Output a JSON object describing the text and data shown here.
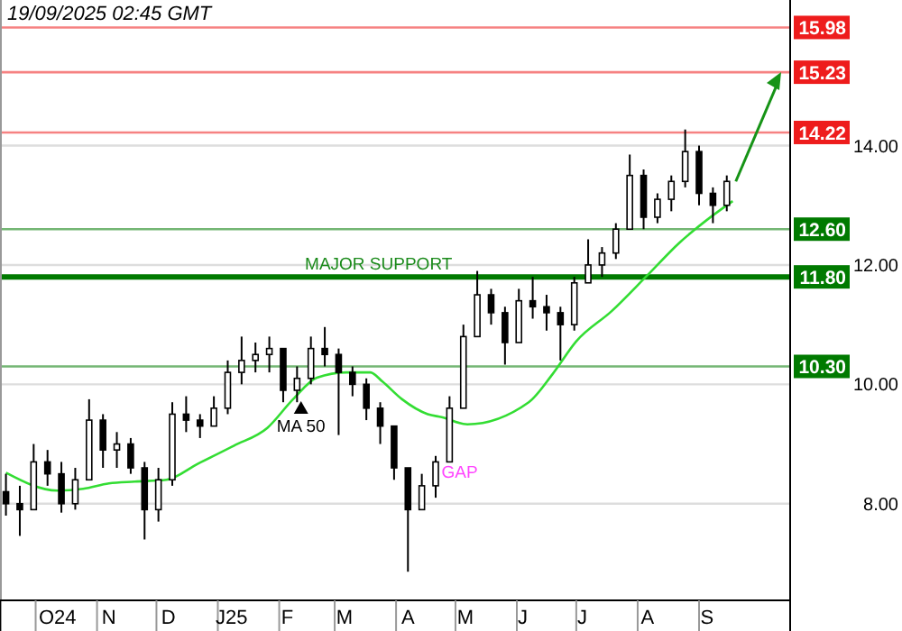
{
  "chart_data": {
    "type": "candlestick",
    "title": "19/09/2025 02:45 GMT",
    "x": [
      "2024-09-16",
      "2024-09-23",
      "2024-09-30",
      "2024-10-07",
      "2024-10-14",
      "2024-10-21",
      "2024-10-28",
      "2024-11-04",
      "2024-11-11",
      "2024-11-18",
      "2024-11-25",
      "2024-12-02",
      "2024-12-09",
      "2024-12-16",
      "2024-12-23",
      "2024-12-30",
      "2025-01-06",
      "2025-01-13",
      "2025-01-20",
      "2025-01-27",
      "2025-02-03",
      "2025-02-10",
      "2025-02-17",
      "2025-02-24",
      "2025-03-03",
      "2025-03-10",
      "2025-03-17",
      "2025-03-24",
      "2025-03-31",
      "2025-04-07",
      "2025-04-14",
      "2025-04-21",
      "2025-04-28",
      "2025-05-05",
      "2025-05-12",
      "2025-05-19",
      "2025-05-26",
      "2025-06-02",
      "2025-06-09",
      "2025-06-16",
      "2025-06-23",
      "2025-06-30",
      "2025-07-07",
      "2025-07-14",
      "2025-07-21",
      "2025-07-28",
      "2025-08-04",
      "2025-08-11",
      "2025-08-18",
      "2025-08-25",
      "2025-09-01",
      "2025-09-08",
      "2025-09-15"
    ],
    "ohlc": [
      [
        8.2,
        8.5,
        7.8,
        8.0
      ],
      [
        8.0,
        8.3,
        7.46,
        7.9
      ],
      [
        7.9,
        9.0,
        7.9,
        8.7
      ],
      [
        8.7,
        8.9,
        8.3,
        8.5
      ],
      [
        8.5,
        8.7,
        7.85,
        8.0
      ],
      [
        8.0,
        8.6,
        7.9,
        8.4
      ],
      [
        8.4,
        9.75,
        8.4,
        9.4
      ],
      [
        9.4,
        9.5,
        8.6,
        8.9
      ],
      [
        8.9,
        9.2,
        8.6,
        9.0
      ],
      [
        9.0,
        9.1,
        8.5,
        8.6
      ],
      [
        8.6,
        8.7,
        7.4,
        7.9
      ],
      [
        7.9,
        8.6,
        7.7,
        8.4
      ],
      [
        8.4,
        9.7,
        8.3,
        9.5
      ],
      [
        9.5,
        9.8,
        9.2,
        9.4
      ],
      [
        9.4,
        9.5,
        9.1,
        9.3
      ],
      [
        9.3,
        9.8,
        9.3,
        9.6
      ],
      [
        9.6,
        10.4,
        9.5,
        10.2
      ],
      [
        10.2,
        10.8,
        10.0,
        10.4
      ],
      [
        10.4,
        10.7,
        10.2,
        10.5
      ],
      [
        10.5,
        10.8,
        10.2,
        10.6
      ],
      [
        10.6,
        10.6,
        9.7,
        9.9
      ],
      [
        9.9,
        10.3,
        9.7,
        10.1
      ],
      [
        10.1,
        10.8,
        10.0,
        10.6
      ],
      [
        10.6,
        10.96,
        10.3,
        10.5
      ],
      [
        10.5,
        10.6,
        9.15,
        10.2
      ],
      [
        10.2,
        10.3,
        9.8,
        10.0
      ],
      [
        10.0,
        10.1,
        9.4,
        9.6
      ],
      [
        9.6,
        9.7,
        9.0,
        9.3
      ],
      [
        9.3,
        9.3,
        8.4,
        8.6
      ],
      [
        8.6,
        8.6,
        6.86,
        7.9
      ],
      [
        7.9,
        8.5,
        7.9,
        8.3
      ],
      [
        8.3,
        8.8,
        8.1,
        8.7
      ],
      [
        8.7,
        9.8,
        8.7,
        9.6
      ],
      [
        9.6,
        11.0,
        9.6,
        10.8
      ],
      [
        10.8,
        11.9,
        10.8,
        11.5
      ],
      [
        11.5,
        11.6,
        11.0,
        11.2
      ],
      [
        11.2,
        11.3,
        10.33,
        10.7
      ],
      [
        10.7,
        11.6,
        10.7,
        11.4
      ],
      [
        11.4,
        11.8,
        11.1,
        11.3
      ],
      [
        11.3,
        11.5,
        10.9,
        11.2
      ],
      [
        11.2,
        11.3,
        10.4,
        11.0
      ],
      [
        11.0,
        11.8,
        10.9,
        11.7
      ],
      [
        11.7,
        12.43,
        11.7,
        12.0
      ],
      [
        12.0,
        12.3,
        11.8,
        12.2
      ],
      [
        12.2,
        12.7,
        12.1,
        12.6
      ],
      [
        12.6,
        13.85,
        12.6,
        13.5
      ],
      [
        13.5,
        13.6,
        12.6,
        12.8
      ],
      [
        12.8,
        13.2,
        12.7,
        13.1
      ],
      [
        13.1,
        13.5,
        12.9,
        13.4
      ],
      [
        13.4,
        14.27,
        13.3,
        13.9
      ],
      [
        13.9,
        14.0,
        13.0,
        13.2
      ],
      [
        13.2,
        13.3,
        12.7,
        13.0
      ],
      [
        13.0,
        13.5,
        12.9,
        13.4
      ]
    ],
    "color": "#000000",
    "series": [
      {
        "type": "line",
        "color": "#33dd33",
        "x": [
          "2024-09-16",
          "2024-10-12",
          "2024-10-25",
          "2024-11-07",
          "2024-11-20",
          "2024-12-06",
          "2024-12-22",
          "2025-01-09",
          "2025-01-26",
          "2025-02-08",
          "2025-02-20",
          "2025-03-07",
          "2025-03-19",
          "2025-03-25",
          "2025-04-04",
          "2025-04-17",
          "2025-04-24",
          "2025-05-07",
          "2025-06-07",
          "2025-06-19",
          "2025-07-01",
          "2025-07-19",
          "2025-08-06",
          "2025-08-22",
          "2025-09-04",
          "2025-09-18"
        ],
        "values": [
          8.52,
          8.22,
          8.25,
          8.34,
          8.37,
          8.4,
          8.67,
          8.97,
          9.27,
          9.75,
          10.11,
          10.2,
          10.2,
          10.05,
          9.75,
          9.5,
          9.45,
          9.33,
          9.7,
          10.17,
          10.72,
          11.23,
          11.83,
          12.37,
          12.73,
          13.07
        ]
      }
    ],
    "xlim": [
      "2024-09-13",
      "2025-10-17"
    ],
    "xticks": [
      {
        "value": "2024-10-12",
        "label": "O24"
      },
      {
        "value": "2024-11-07",
        "label": "N"
      },
      {
        "value": "2024-12-07",
        "label": "D"
      },
      {
        "value": "2025-01-08",
        "label": "J25"
      },
      {
        "value": "2025-02-05",
        "label": "F"
      },
      {
        "value": "2025-03-06",
        "label": "M"
      },
      {
        "value": "2025-04-07",
        "label": "A"
      },
      {
        "value": "2025-05-06",
        "label": "M"
      },
      {
        "value": "2025-06-04",
        "label": "J"
      },
      {
        "value": "2025-07-04",
        "label": "J"
      },
      {
        "value": "2025-08-06",
        "label": "A"
      },
      {
        "value": "2025-09-05",
        "label": "S"
      }
    ],
    "ylim": [
      6.38,
      16.44
    ],
    "yticks": [
      {
        "value": 8,
        "label": "8.00"
      },
      {
        "value": 10,
        "label": "10.00"
      },
      {
        "value": 12,
        "label": "12.00"
      },
      {
        "value": 14,
        "label": "14.00"
      }
    ],
    "grid": "y",
    "ref_lines": [
      {
        "axis": "y",
        "value": 15.98,
        "color": "#ee1c1c",
        "label": "15.98"
      },
      {
        "axis": "y",
        "value": 15.23,
        "color": "#ee1c1c",
        "label": "15.23"
      },
      {
        "axis": "y",
        "value": 14.22,
        "color": "#ee1c1c",
        "label": "14.22"
      },
      {
        "axis": "y",
        "value": 12.6,
        "color": "#007a00",
        "label": "12.60"
      },
      {
        "axis": "y",
        "value": 11.8,
        "color": "#007a00",
        "label": "11.80"
      },
      {
        "axis": "y",
        "value": 10.3,
        "color": "#007a00",
        "label": "10.30"
      }
    ],
    "annotations": [
      {
        "text": "MA 50",
        "x": "2025-02-12",
        "y": 9.75
      },
      {
        "text": "GAP",
        "x": "2025-04-24",
        "y": 8.52
      },
      {
        "text": "MAJOR SUPPORT",
        "x": "2025-02-14",
        "y": 11.8
      }
    ]
  }
}
